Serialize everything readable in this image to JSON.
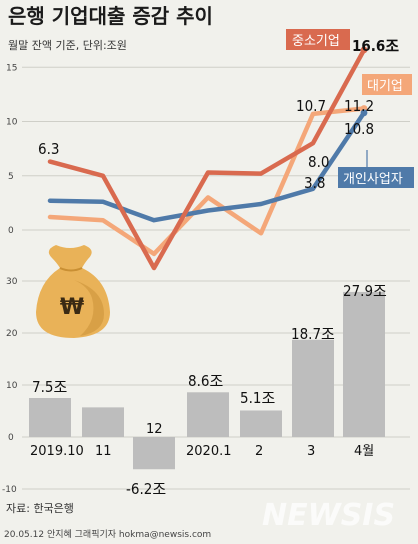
{
  "title": "은행 기업대출 증감 추이",
  "subtitle": "월말 잔액 기준, 단위:조원",
  "source": "자료: 한국은행",
  "credit": "20.05.12 안지혜 그래픽기자 hokma@newsis.com",
  "watermark": "NEWSIS",
  "colors": {
    "sme": "#d96a4f",
    "large": "#f4a779",
    "individual": "#4f7aa9",
    "bar": "#bdbdbd",
    "background": "#f1f1ec"
  },
  "icon": "money-bag-won-icon",
  "chart_data": [
    {
      "type": "line",
      "x": [
        "2019.10",
        "11",
        "12",
        "2020.1",
        "2",
        "3",
        "4월"
      ],
      "ylim": [
        -7,
        17
      ],
      "yticks": [
        "15",
        "10",
        "5",
        "0"
      ],
      "series": [
        {
          "name": "중소기업",
          "values": [
            6.3,
            5.0,
            -3.5,
            5.3,
            5.2,
            8.0,
            16.6
          ]
        },
        {
          "name": "대기업",
          "values": [
            1.2,
            0.9,
            -2.2,
            3.0,
            -0.3,
            10.7,
            11.2
          ]
        },
        {
          "name": "개인사업자",
          "values": [
            2.7,
            2.6,
            0.9,
            1.8,
            2.4,
            3.8,
            10.8
          ]
        }
      ],
      "labels": {
        "first": "6.3",
        "sme_last": "16.6조",
        "large_mar": "10.7",
        "large_last": "11.2",
        "sme_mar": "8.0",
        "ind_mar": "3.8",
        "ind_last": "10.8"
      }
    },
    {
      "type": "bar",
      "categories": [
        "2019.10",
        "11",
        "12",
        "2020.1",
        "2",
        "3",
        "4월"
      ],
      "values": [
        7.5,
        5.7,
        -6.2,
        8.6,
        5.1,
        18.7,
        27.9
      ],
      "ylim": [
        -10,
        30
      ],
      "yticks": [
        "30",
        "20",
        "10",
        "0",
        "-10"
      ],
      "labels": [
        "7.5조",
        "",
        "-6.2조",
        "8.6조",
        "5.1조",
        "18.7조",
        "27.9조"
      ]
    }
  ]
}
